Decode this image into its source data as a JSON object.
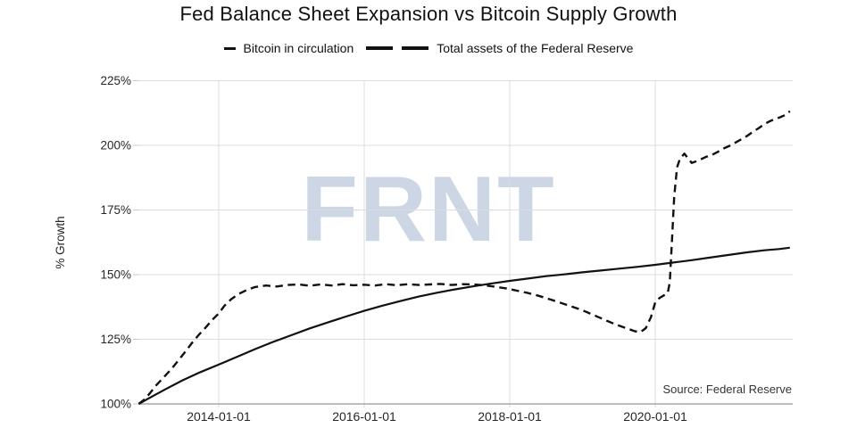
{
  "chart_data": {
    "type": "line",
    "title": "Fed Balance Sheet Expansion vs Bitcoin Supply Growth",
    "ylabel": "% Growth",
    "xlabel": "",
    "watermark": "FRNT",
    "source_note": "Source: Federal Reserve",
    "grid": true,
    "legend_position": "top-center",
    "xlim": [
      2012.9,
      2021.88
    ],
    "ylim": [
      100,
      225
    ],
    "x_ticks": [
      {
        "value": 2014.0,
        "label": "2014-01-01"
      },
      {
        "value": 2016.0,
        "label": "2016-01-01"
      },
      {
        "value": 2018.0,
        "label": "2018-01-01"
      },
      {
        "value": 2020.0,
        "label": "2020-01-01"
      }
    ],
    "y_ticks": [
      {
        "value": 100,
        "label": "100%"
      },
      {
        "value": 125,
        "label": "125%"
      },
      {
        "value": 150,
        "label": "150%"
      },
      {
        "value": 175,
        "label": "175%"
      },
      {
        "value": 200,
        "label": "200%"
      },
      {
        "value": 225,
        "label": "225%"
      }
    ],
    "colors": {
      "line": "#111111",
      "grid": "#dcdcdc",
      "baseline": "#a8a8a8",
      "tick": "#c9c9c9",
      "text": "#262626",
      "watermark": "#cdd6e4"
    },
    "legend": [
      {
        "label": "Bitcoin in circulation",
        "style": "solid"
      },
      {
        "label": "Total assets of the Federal Reserve",
        "style": "dashed"
      }
    ],
    "series": [
      {
        "name": "Bitcoin in circulation",
        "style": "solid",
        "points": [
          [
            2012.9,
            100
          ],
          [
            2013.0,
            101.6
          ],
          [
            2013.25,
            105.4
          ],
          [
            2013.5,
            109.1
          ],
          [
            2013.75,
            112.3
          ],
          [
            2014.0,
            115.2
          ],
          [
            2014.25,
            118.2
          ],
          [
            2014.5,
            121.2
          ],
          [
            2014.75,
            124.0
          ],
          [
            2015.0,
            126.6
          ],
          [
            2015.25,
            129.2
          ],
          [
            2015.5,
            131.5
          ],
          [
            2015.75,
            133.8
          ],
          [
            2016.0,
            136.0
          ],
          [
            2016.25,
            138.0
          ],
          [
            2016.5,
            139.8
          ],
          [
            2016.75,
            141.5
          ],
          [
            2017.0,
            143.0
          ],
          [
            2017.25,
            144.3
          ],
          [
            2017.5,
            145.5
          ],
          [
            2017.75,
            146.6
          ],
          [
            2018.0,
            147.6
          ],
          [
            2018.25,
            148.5
          ],
          [
            2018.5,
            149.4
          ],
          [
            2018.75,
            150.1
          ],
          [
            2019.0,
            150.9
          ],
          [
            2019.25,
            151.6
          ],
          [
            2019.5,
            152.3
          ],
          [
            2019.75,
            153.0
          ],
          [
            2020.0,
            153.8
          ],
          [
            2020.25,
            154.7
          ],
          [
            2020.5,
            155.6
          ],
          [
            2020.75,
            156.6
          ],
          [
            2021.0,
            157.6
          ],
          [
            2021.25,
            158.6
          ],
          [
            2021.5,
            159.4
          ],
          [
            2021.7,
            159.9
          ],
          [
            2021.85,
            160.4
          ]
        ]
      },
      {
        "name": "Total assets of the Federal Reserve",
        "style": "dashed",
        "points": [
          [
            2012.9,
            100
          ],
          [
            2012.97,
            101.5
          ],
          [
            2013.05,
            104.0
          ],
          [
            2013.15,
            107.5
          ],
          [
            2013.25,
            110.5
          ],
          [
            2013.35,
            113.5
          ],
          [
            2013.45,
            117.0
          ],
          [
            2013.55,
            120.5
          ],
          [
            2013.63,
            123.5
          ],
          [
            2013.72,
            126.5
          ],
          [
            2013.82,
            129.5
          ],
          [
            2013.91,
            132.5
          ],
          [
            2014.0,
            135.0
          ],
          [
            2014.08,
            138.0
          ],
          [
            2014.17,
            140.5
          ],
          [
            2014.27,
            142.5
          ],
          [
            2014.38,
            144.0
          ],
          [
            2014.5,
            145.2
          ],
          [
            2014.65,
            145.8
          ],
          [
            2014.8,
            145.4
          ],
          [
            2014.95,
            146.0
          ],
          [
            2015.1,
            146.2
          ],
          [
            2015.25,
            145.7
          ],
          [
            2015.4,
            146.2
          ],
          [
            2015.55,
            145.8
          ],
          [
            2015.7,
            146.3
          ],
          [
            2015.85,
            145.9
          ],
          [
            2016.0,
            146.1
          ],
          [
            2016.15,
            145.8
          ],
          [
            2016.3,
            146.3
          ],
          [
            2016.45,
            145.9
          ],
          [
            2016.6,
            146.3
          ],
          [
            2016.75,
            146.0
          ],
          [
            2016.9,
            146.2
          ],
          [
            2017.05,
            146.4
          ],
          [
            2017.2,
            146.0
          ],
          [
            2017.35,
            146.3
          ],
          [
            2017.5,
            146.2
          ],
          [
            2017.65,
            145.9
          ],
          [
            2017.8,
            145.3
          ],
          [
            2017.95,
            144.7
          ],
          [
            2018.1,
            143.8
          ],
          [
            2018.25,
            142.9
          ],
          [
            2018.4,
            141.8
          ],
          [
            2018.55,
            140.5
          ],
          [
            2018.7,
            139.1
          ],
          [
            2018.85,
            137.7
          ],
          [
            2019.0,
            136.2
          ],
          [
            2019.15,
            134.4
          ],
          [
            2019.3,
            132.6
          ],
          [
            2019.45,
            130.8
          ],
          [
            2019.6,
            129.3
          ],
          [
            2019.72,
            128.1
          ],
          [
            2019.8,
            127.8
          ],
          [
            2019.87,
            129.3
          ],
          [
            2019.94,
            133.5
          ],
          [
            2020.0,
            139.3
          ],
          [
            2020.06,
            141.0
          ],
          [
            2020.12,
            142.0
          ],
          [
            2020.17,
            142.8
          ],
          [
            2020.2,
            147.0
          ],
          [
            2020.23,
            163.0
          ],
          [
            2020.26,
            180.0
          ],
          [
            2020.3,
            191.5
          ],
          [
            2020.34,
            194.8
          ],
          [
            2020.4,
            196.8
          ],
          [
            2020.45,
            195.0
          ],
          [
            2020.5,
            193.2
          ],
          [
            2020.56,
            193.8
          ],
          [
            2020.62,
            194.5
          ],
          [
            2020.7,
            195.6
          ],
          [
            2020.78,
            196.3
          ],
          [
            2020.86,
            197.5
          ],
          [
            2020.94,
            198.8
          ],
          [
            2021.02,
            199.8
          ],
          [
            2021.1,
            201.0
          ],
          [
            2021.18,
            202.3
          ],
          [
            2021.26,
            203.6
          ],
          [
            2021.34,
            205.2
          ],
          [
            2021.42,
            206.6
          ],
          [
            2021.5,
            208.2
          ],
          [
            2021.58,
            209.4
          ],
          [
            2021.65,
            210.2
          ],
          [
            2021.72,
            210.9
          ],
          [
            2021.79,
            211.8
          ],
          [
            2021.85,
            213.2
          ]
        ]
      }
    ]
  }
}
